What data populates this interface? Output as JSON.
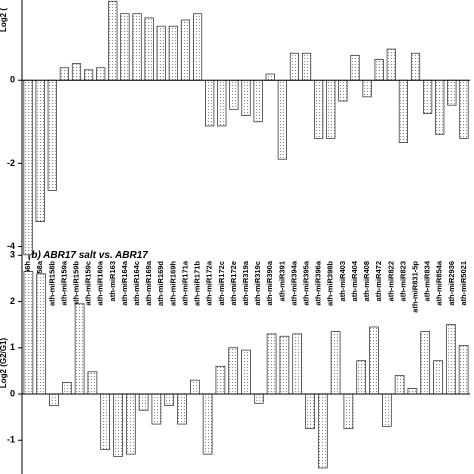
{
  "chart_data": [
    {
      "type": "bar",
      "y_label": "Log2 (",
      "categories": [
        "ath-miR156h",
        "ath-miR158a",
        "ath-miR158b",
        "ath-miR159a",
        "ath-miR159b",
        "ath-miR159c",
        "ath-miR160a",
        "ath-miR163",
        "ath-miR164a",
        "ath-miR164c",
        "ath-miR169a",
        "ath-miR169d",
        "ath-miR169h",
        "ath-miR171a",
        "ath-miR171b",
        "ath-miR172a",
        "ath-miR172c",
        "ath-miR172e",
        "ath-miR319a",
        "ath-miR319c",
        "ath-miR390a",
        "ath-miR391",
        "ath-miR394a",
        "ath-miR395a",
        "ath-miR396a",
        "ath-miR398b",
        "ath-miR403",
        "ath-miR404",
        "ath-miR408",
        "ath-miR472",
        "ath-miR822",
        "ath-miR823",
        "ath-miR831-5p",
        "ath-miR834",
        "ath-miR854a",
        "ath-miR2936",
        "ath-miR5021"
      ],
      "values": [
        -4.2,
        -3.4,
        -2.65,
        0.3,
        0.4,
        0.25,
        0.3,
        1.9,
        1.6,
        1.6,
        1.5,
        1.3,
        1.3,
        1.45,
        1.6,
        -1.1,
        -1.1,
        -0.7,
        -0.85,
        -1.0,
        0.15,
        -1.9,
        0.65,
        0.65,
        -1.4,
        -1.4,
        -0.5,
        0.6,
        -0.4,
        0.5,
        0.75,
        -1.5,
        0.65,
        -0.8,
        -1.3,
        -0.6,
        -1.4
      ],
      "color": "#e4e4e4",
      "ylim": [
        -4.3,
        1.93
      ],
      "yticks": [
        -4,
        -2,
        0
      ]
    },
    {
      "type": "bar",
      "title": "(b) ABR17 salt vs. ABR17",
      "y_label": "Log2 (G2/G1)",
      "values": [
        2.65,
        2.6,
        -0.25,
        0.25,
        1.95,
        0.48,
        -1.2,
        -1.35,
        -1.3,
        -0.35,
        -0.65,
        -0.25,
        -0.65,
        0.3,
        -1.3,
        0.6,
        1.0,
        0.95,
        -0.2,
        1.3,
        1.25,
        1.3,
        -0.75,
        -1.6,
        1.35,
        -0.75,
        0.72,
        1.45,
        -0.7,
        0.4,
        0.12,
        1.35,
        0.72,
        1.5,
        1.05
      ],
      "color": "#e4e4e4",
      "ylim": [
        -1.73,
        3.05
      ],
      "yticks": [
        -1,
        0,
        1,
        2,
        3
      ]
    }
  ]
}
